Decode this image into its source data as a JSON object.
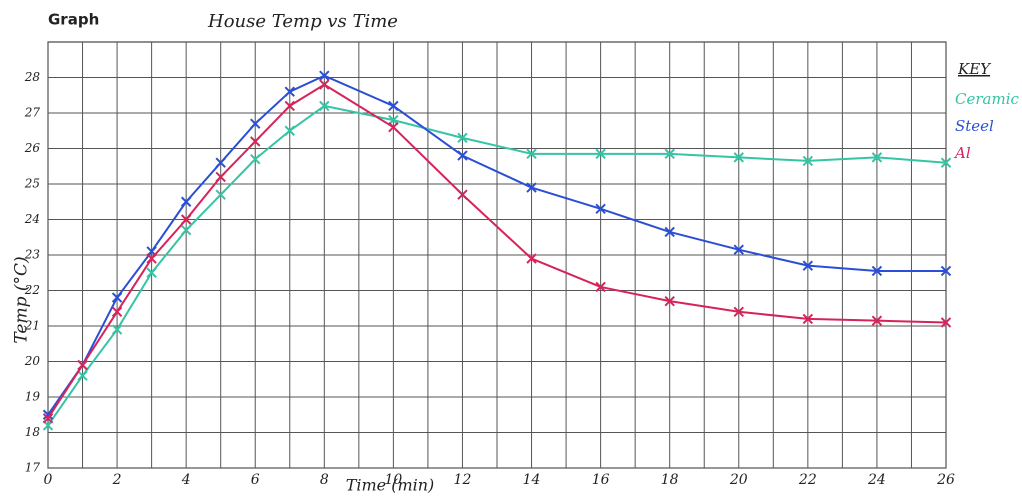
{
  "chart_data": {
    "type": "line",
    "header": "Graph",
    "title": "House Temp vs Time",
    "x_label": "Time (min)",
    "y_label": "Temp (°C)",
    "legend_title": "KEY",
    "x": [
      0,
      1,
      2,
      3,
      4,
      5,
      6,
      7,
      8,
      10,
      12,
      14,
      16,
      18,
      20,
      22,
      24,
      26
    ],
    "series": [
      {
        "name": "Ceramic",
        "color": "#35c4a4",
        "values": [
          18.2,
          19.6,
          20.9,
          22.5,
          23.7,
          24.7,
          25.7,
          26.5,
          27.2,
          26.8,
          26.3,
          25.85,
          25.85,
          25.85,
          25.75,
          25.65,
          25.75,
          25.6
        ]
      },
      {
        "name": "Steel",
        "color": "#2a4fd6",
        "values": [
          18.5,
          19.9,
          21.8,
          23.1,
          24.5,
          25.6,
          26.7,
          27.6,
          28.05,
          27.2,
          25.8,
          24.9,
          24.3,
          23.65,
          23.15,
          22.7,
          22.55,
          22.55
        ]
      },
      {
        "name": "Al",
        "color": "#d6245a",
        "values": [
          18.4,
          19.9,
          21.4,
          22.9,
          24.0,
          25.2,
          26.2,
          27.2,
          27.8,
          26.6,
          24.7,
          22.9,
          22.1,
          21.7,
          21.4,
          21.2,
          21.15,
          21.1
        ]
      }
    ],
    "xlim": [
      0,
      26
    ],
    "xticks": [
      0,
      2,
      4,
      6,
      8,
      10,
      12,
      14,
      16,
      18,
      20,
      22,
      24,
      26
    ],
    "ylim": [
      17,
      29
    ],
    "yticks": [
      17,
      18,
      19,
      20,
      21,
      22,
      23,
      24,
      25,
      26,
      27,
      28
    ],
    "grid": true,
    "legend": "right"
  }
}
